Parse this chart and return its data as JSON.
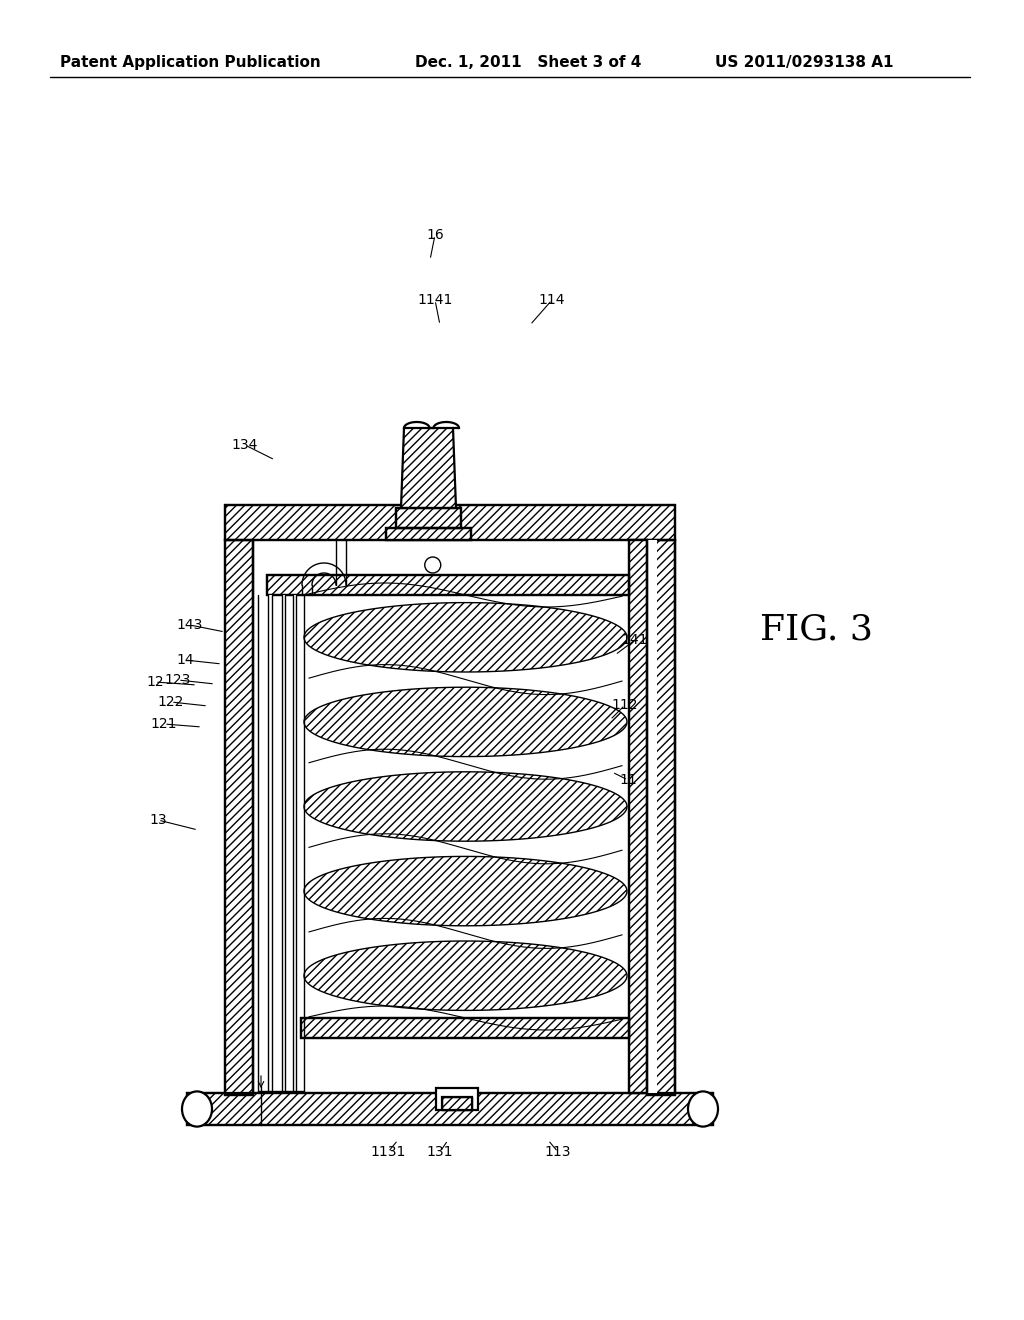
{
  "bg_color": "#ffffff",
  "line_color": "#000000",
  "fig_label": "FIG. 3",
  "header_left": "Patent Application Publication",
  "header_mid": "Dec. 1, 2011   Sheet 3 of 4",
  "header_right": "US 2011/0293138 A1",
  "fig_width": 10.24,
  "fig_height": 13.2,
  "dpi": 100
}
